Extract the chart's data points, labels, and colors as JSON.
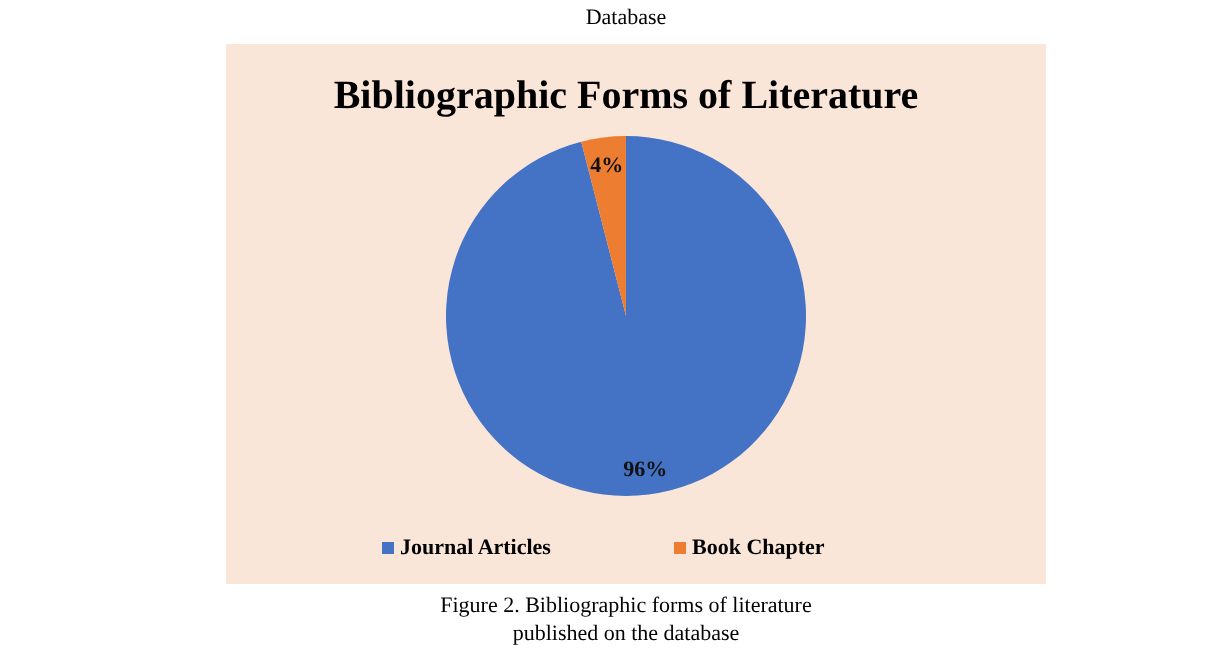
{
  "chart_data": {
    "type": "pie",
    "title": "Bibliographic Forms of Literature",
    "categories": [
      "Journal Articles",
      "Book Chapter"
    ],
    "values": [
      96,
      4
    ],
    "colors": [
      "#4472c4",
      "#ed7d31"
    ],
    "value_labels": [
      "96%",
      "4%"
    ],
    "legend": "bottom",
    "annotations": [
      "Database",
      "Figure 2. Bibliographic forms of literature\npublished on the database"
    ]
  }
}
